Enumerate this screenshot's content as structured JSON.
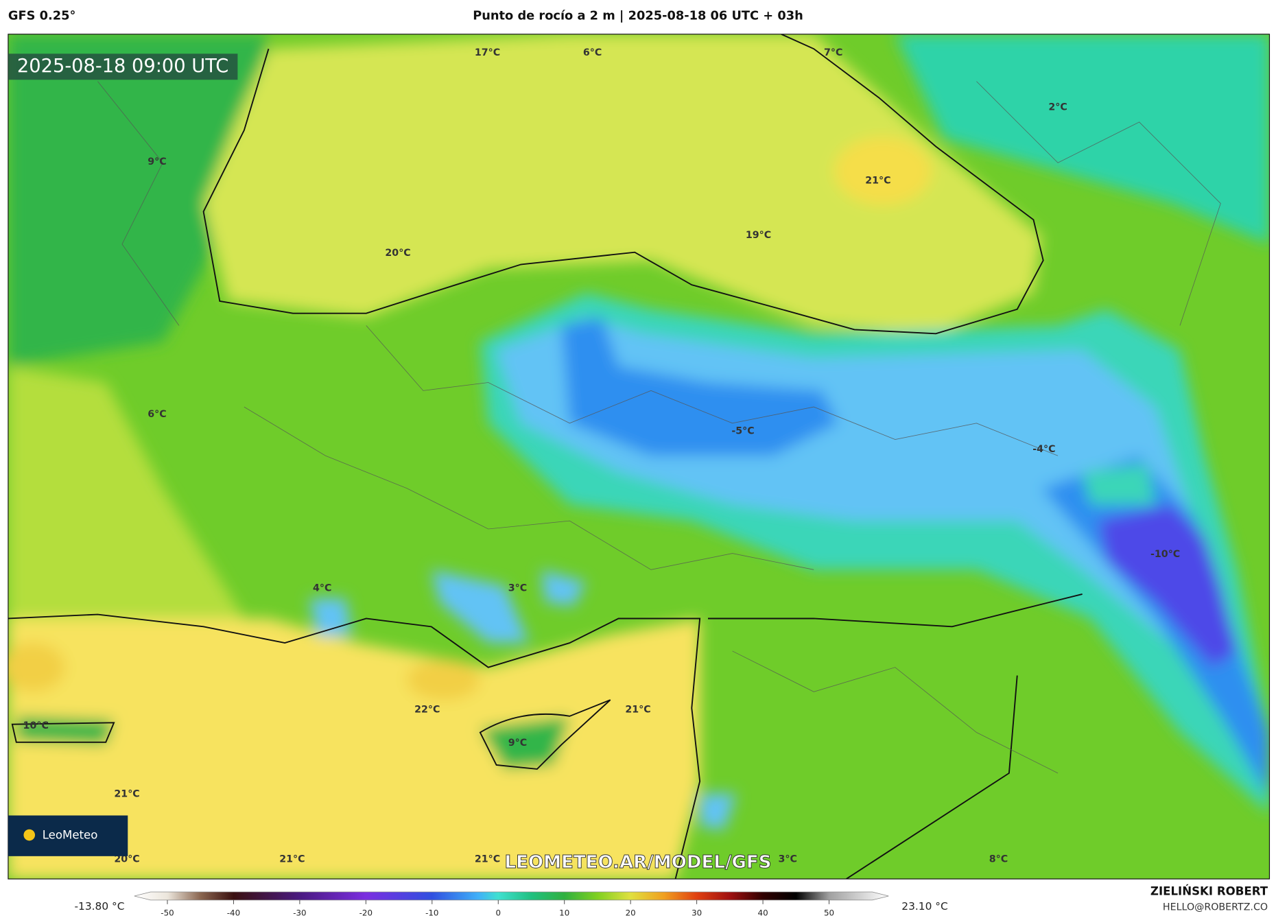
{
  "header": {
    "model": "GFS 0.25°",
    "title": "Punto de rocío a 2 m | 2025-08-18 06 UTC + 03h"
  },
  "map": {
    "timestamp": "2025-08-18 09:00 UTC",
    "logo": "LeoMeteo",
    "watermark": "LEOMETEO.AR/MODEL/GFS",
    "labels": [
      "17°C",
      "6°C",
      "7°C",
      "2°C",
      "9°C",
      "21°C",
      "19°C",
      "20°C",
      "6°C",
      "-5°C",
      "-4°C",
      "4°C",
      "3°C",
      "-10°C",
      "22°C",
      "21°C",
      "9°C",
      "10°C",
      "21°C",
      "20°C",
      "21°C",
      "21°C",
      "3°C",
      "8°C"
    ]
  },
  "colorbar": {
    "min_label": "-13.80 °C",
    "max_label": "23.10 °C",
    "lim": [
      -55,
      59
    ],
    "ticks": [
      -50,
      -40,
      -30,
      -20,
      -10,
      0,
      10,
      20,
      30,
      40,
      50
    ],
    "stops": [
      {
        "value": -55,
        "color": "#ffffff"
      },
      {
        "value": -50,
        "color": "#ece6dc"
      },
      {
        "value": -45,
        "color": "#8a6650"
      },
      {
        "value": -40,
        "color": "#3a1010"
      },
      {
        "value": -30,
        "color": "#4a1a80"
      },
      {
        "value": -20,
        "color": "#7b2ee0"
      },
      {
        "value": -10,
        "color": "#3050e0"
      },
      {
        "value": -3,
        "color": "#40b0f8"
      },
      {
        "value": 0,
        "color": "#40e0d0"
      },
      {
        "value": 5,
        "color": "#20c080"
      },
      {
        "value": 10,
        "color": "#30b040"
      },
      {
        "value": 15,
        "color": "#80d020"
      },
      {
        "value": 20,
        "color": "#e0e040"
      },
      {
        "value": 25,
        "color": "#f0a020"
      },
      {
        "value": 30,
        "color": "#e04010"
      },
      {
        "value": 35,
        "color": "#a01010"
      },
      {
        "value": 40,
        "color": "#300000"
      },
      {
        "value": 45,
        "color": "#000000"
      },
      {
        "value": 50,
        "color": "#a0a0a0"
      },
      {
        "value": 59,
        "color": "#ffffff"
      }
    ]
  },
  "credits": {
    "author": "ZIELIŃSKI ROBERT",
    "email": "HELLO@ROBERTZ.CO"
  }
}
